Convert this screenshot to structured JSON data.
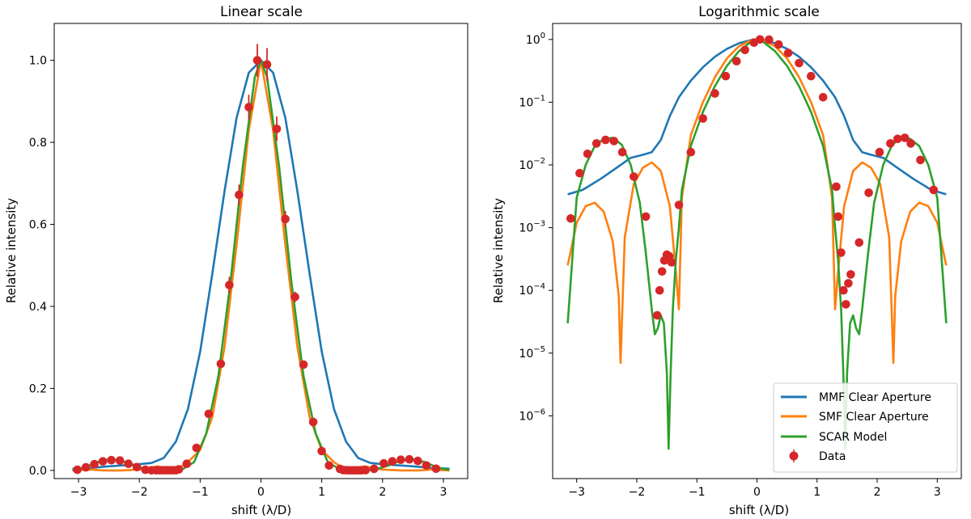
{
  "colors": {
    "mmf": "#1f77b4",
    "smf": "#ff7f0e",
    "scar": "#2ca02c",
    "data": "#d62728"
  },
  "chart_data": [
    {
      "type": "line",
      "title": "Linear scale",
      "xlabel": "shift (λ/D)",
      "ylabel": "Relative intensity",
      "xlim": [
        -3.4,
        3.4
      ],
      "ylim": [
        -0.02,
        1.09
      ],
      "yscale": "linear",
      "xticks": [
        -3,
        -2,
        -1,
        0,
        1,
        2,
        3
      ],
      "xtick_labels": [
        "−3",
        "−2",
        "−1",
        "0",
        "1",
        "2",
        "3"
      ],
      "yticks": [
        0.0,
        0.2,
        0.4,
        0.6,
        0.8,
        1.0
      ],
      "ytick_labels": [
        "0.0",
        "0.2",
        "0.4",
        "0.6",
        "0.8",
        "1.0"
      ],
      "series": [
        {
          "name": "MMF Clear Aperture",
          "color_key": "mmf",
          "x": [
            -3.1,
            -2.8,
            -2.5,
            -2.2,
            -2.0,
            -1.8,
            -1.6,
            -1.4,
            -1.2,
            -1.0,
            -0.8,
            -0.6,
            -0.4,
            -0.2,
            0.0,
            0.2,
            0.4,
            0.6,
            0.8,
            1.0,
            1.2,
            1.4,
            1.6,
            1.8,
            2.0,
            2.2,
            2.5,
            2.8,
            3.1
          ],
          "y": [
            0.004,
            0.006,
            0.01,
            0.013,
            0.015,
            0.018,
            0.03,
            0.07,
            0.15,
            0.29,
            0.48,
            0.68,
            0.86,
            0.97,
            1.0,
            0.97,
            0.86,
            0.68,
            0.48,
            0.29,
            0.15,
            0.07,
            0.03,
            0.018,
            0.015,
            0.013,
            0.01,
            0.006,
            0.004
          ]
        },
        {
          "name": "SMF Clear Aperture",
          "color_key": "smf",
          "x": [
            -3.1,
            -2.8,
            -2.6,
            -2.3,
            -2.0,
            -1.7,
            -1.4,
            -1.2,
            -1.0,
            -0.8,
            -0.6,
            -0.4,
            -0.2,
            0.0,
            0.2,
            0.4,
            0.6,
            0.8,
            1.0,
            1.2,
            1.4,
            1.7,
            2.0,
            2.3,
            2.6,
            2.8,
            3.1
          ],
          "y": [
            0.0,
            0.002,
            0.0,
            0.0,
            0.002,
            0.01,
            0.001,
            0.02,
            0.05,
            0.13,
            0.3,
            0.55,
            0.83,
            1.0,
            0.83,
            0.55,
            0.3,
            0.13,
            0.05,
            0.02,
            0.001,
            0.01,
            0.002,
            0.0,
            0.0,
            0.002,
            0.0
          ]
        },
        {
          "name": "SCAR Model",
          "color_key": "scar",
          "x": [
            -3.1,
            -2.9,
            -2.7,
            -2.5,
            -2.3,
            -2.1,
            -1.9,
            -1.7,
            -1.5,
            -1.3,
            -1.1,
            -0.9,
            -0.7,
            -0.5,
            -0.3,
            -0.1,
            0.0,
            0.1,
            0.3,
            0.5,
            0.7,
            0.9,
            1.1,
            1.3,
            1.5,
            1.7,
            1.9,
            2.1,
            2.3,
            2.5,
            2.7,
            2.9,
            3.1
          ],
          "y": [
            0.001,
            0.007,
            0.02,
            0.027,
            0.024,
            0.012,
            0.003,
            0.0003,
            0.0002,
            0.002,
            0.02,
            0.09,
            0.23,
            0.46,
            0.74,
            0.96,
            1.0,
            0.96,
            0.74,
            0.46,
            0.23,
            0.09,
            0.02,
            0.002,
            0.0002,
            0.0003,
            0.003,
            0.012,
            0.024,
            0.027,
            0.02,
            0.007,
            0.001
          ]
        }
      ],
      "data_points": {
        "name": "Data",
        "color_key": "data",
        "x": [
          -3.02,
          -2.88,
          -2.74,
          -2.6,
          -2.46,
          -2.32,
          -2.18,
          -2.04,
          -1.9,
          -1.8,
          -1.72,
          -1.66,
          -1.6,
          -1.55,
          -1.5,
          -1.45,
          -1.4,
          -1.35,
          -1.22,
          -1.06,
          -0.86,
          -0.66,
          -0.52,
          -0.36,
          -0.2,
          -0.06,
          0.1,
          0.26,
          0.4,
          0.56,
          0.7,
          0.86,
          1.0,
          1.12,
          1.3,
          1.35,
          1.4,
          1.45,
          1.5,
          1.55,
          1.6,
          1.65,
          1.72,
          1.86,
          2.02,
          2.16,
          2.3,
          2.44,
          2.58,
          2.72,
          2.88
        ],
        "y": [
          0.0014,
          0.0074,
          0.015,
          0.022,
          0.025,
          0.024,
          0.016,
          0.008,
          0.0015,
          4e-05,
          0.0001,
          0.0002,
          0.0003,
          0.00036,
          0.00035,
          0.0003,
          0.00028,
          0.0025,
          0.016,
          0.055,
          0.138,
          0.26,
          0.452,
          0.672,
          0.886,
          1.0,
          0.99,
          0.833,
          0.613,
          0.423,
          0.258,
          0.118,
          0.047,
          0.012,
          0.0035,
          0.0009,
          0.0003,
          0.0001,
          6e-05,
          0.00013,
          0.00018,
          0.00016,
          0.0006,
          0.0039,
          0.017,
          0.022,
          0.026,
          0.027,
          0.023,
          0.012,
          0.004
        ],
        "errors": [
          0,
          0,
          0,
          0,
          0,
          0,
          0,
          0,
          0,
          0,
          0,
          0,
          0,
          0,
          0,
          0,
          0,
          0,
          0,
          0,
          0.004,
          0.008,
          0.02,
          0.025,
          0.03,
          0.04,
          0.04,
          0.03,
          0.02,
          0.013,
          0.005,
          0,
          0,
          0,
          0,
          0,
          0,
          0,
          0,
          0,
          0,
          0,
          0,
          0,
          0,
          0,
          0,
          0,
          0,
          0,
          0
        ]
      }
    },
    {
      "type": "line",
      "title": "Logarithmic scale",
      "xlabel": "shift (λ/D)",
      "ylabel": "Relative intensity",
      "xlim": [
        -3.4,
        3.4
      ],
      "ylim": [
        1e-07,
        1.8
      ],
      "yscale": "log",
      "xticks": [
        -3,
        -2,
        -1,
        0,
        1,
        2,
        3
      ],
      "xtick_labels": [
        "−3",
        "−2",
        "−1",
        "0",
        "1",
        "2",
        "3"
      ],
      "yticks": [
        1e-06,
        1e-05,
        0.0001,
        0.001,
        0.01,
        0.1,
        1
      ],
      "ytick_base": "10",
      "ytick_exponents": [
        "−6",
        "−5",
        "−4",
        "−3",
        "−2",
        "−1",
        "0"
      ],
      "series": [
        {
          "name": "MMF Clear Aperture",
          "color_key": "mmf",
          "x": [
            -3.15,
            -2.9,
            -2.6,
            -2.3,
            -2.1,
            -1.9,
            -1.75,
            -1.6,
            -1.45,
            -1.3,
            -1.1,
            -0.9,
            -0.7,
            -0.5,
            -0.3,
            -0.1,
            0.0,
            0.1,
            0.3,
            0.5,
            0.7,
            0.9,
            1.1,
            1.3,
            1.45,
            1.6,
            1.75,
            1.9,
            2.1,
            2.3,
            2.6,
            2.9,
            3.15
          ],
          "y": [
            0.0034,
            0.004,
            0.006,
            0.0095,
            0.013,
            0.0145,
            0.016,
            0.025,
            0.06,
            0.12,
            0.22,
            0.36,
            0.53,
            0.71,
            0.87,
            0.98,
            1.0,
            0.98,
            0.87,
            0.71,
            0.53,
            0.36,
            0.22,
            0.12,
            0.06,
            0.025,
            0.016,
            0.0145,
            0.013,
            0.0095,
            0.006,
            0.004,
            0.0034
          ]
        },
        {
          "name": "SMF Clear Aperture",
          "color_key": "smf",
          "x": [
            -3.15,
            -3.0,
            -2.85,
            -2.7,
            -2.55,
            -2.4,
            -2.3,
            -2.27,
            -2.2,
            -2.05,
            -1.9,
            -1.75,
            -1.6,
            -1.45,
            -1.35,
            -1.3,
            -1.25,
            -1.1,
            -0.9,
            -0.7,
            -0.5,
            -0.3,
            -0.1,
            0.0,
            0.1,
            0.3,
            0.5,
            0.7,
            0.9,
            1.1,
            1.25,
            1.3,
            1.35,
            1.45,
            1.6,
            1.75,
            1.9,
            2.05,
            2.2,
            2.27,
            2.3,
            2.4,
            2.55,
            2.7,
            2.85,
            3.0,
            3.15
          ],
          "y": [
            0.00025,
            0.0012,
            0.0022,
            0.0025,
            0.0018,
            0.0006,
            8e-05,
            7e-06,
            0.0007,
            0.005,
            0.009,
            0.011,
            0.008,
            0.0022,
            0.0002,
            5e-05,
            0.003,
            0.03,
            0.1,
            0.25,
            0.5,
            0.78,
            0.97,
            1.0,
            0.97,
            0.78,
            0.5,
            0.25,
            0.1,
            0.03,
            0.003,
            5e-05,
            0.0002,
            0.0022,
            0.008,
            0.011,
            0.009,
            0.005,
            0.0007,
            7e-06,
            8e-05,
            0.0006,
            0.0018,
            0.0025,
            0.0022,
            0.0012,
            0.00025
          ]
        },
        {
          "name": "SCAR Model",
          "color_key": "scar",
          "x": [
            -3.15,
            -3.0,
            -2.85,
            -2.7,
            -2.55,
            -2.4,
            -2.25,
            -2.1,
            -1.95,
            -1.85,
            -1.75,
            -1.7,
            -1.65,
            -1.6,
            -1.55,
            -1.5,
            -1.47,
            -1.44,
            -1.4,
            -1.35,
            -1.3,
            -1.25,
            -1.1,
            -0.9,
            -0.7,
            -0.5,
            -0.3,
            -0.1,
            0.0,
            0.1,
            0.3,
            0.5,
            0.7,
            0.9,
            1.1,
            1.25,
            1.3,
            1.35,
            1.4,
            1.44,
            1.47,
            1.5,
            1.55,
            1.6,
            1.65,
            1.7,
            1.75,
            1.85,
            1.95,
            2.1,
            2.25,
            2.4,
            2.55,
            2.7,
            2.85,
            3.0,
            3.15
          ],
          "y": [
            3e-05,
            0.003,
            0.01,
            0.02,
            0.026,
            0.027,
            0.021,
            0.01,
            0.0025,
            0.0004,
            5e-05,
            2e-05,
            2.5e-05,
            4e-05,
            3e-05,
            5e-06,
            3e-07,
            4e-06,
            5e-05,
            0.0003,
            0.001,
            0.004,
            0.02,
            0.07,
            0.18,
            0.38,
            0.65,
            0.92,
            1.0,
            0.92,
            0.65,
            0.38,
            0.18,
            0.07,
            0.02,
            0.004,
            0.001,
            0.0003,
            5e-05,
            4e-06,
            3e-07,
            5e-06,
            3e-05,
            4e-05,
            2.5e-05,
            2e-05,
            5e-05,
            0.0004,
            0.0025,
            0.01,
            0.021,
            0.027,
            0.026,
            0.02,
            0.01,
            0.003,
            3e-05
          ]
        }
      ],
      "data_points": {
        "name": "Data",
        "color_key": "data",
        "x": [
          -3.1,
          -2.95,
          -2.82,
          -2.67,
          -2.52,
          -2.38,
          -2.24,
          -2.05,
          -1.85,
          -1.66,
          -1.62,
          -1.58,
          -1.54,
          -1.5,
          -1.46,
          -1.42,
          -1.3,
          -1.1,
          -0.9,
          -0.7,
          -0.52,
          -0.34,
          -0.2,
          -0.05,
          0.05,
          0.2,
          0.36,
          0.52,
          0.7,
          0.9,
          1.1,
          1.32,
          1.35,
          1.4,
          1.44,
          1.48,
          1.52,
          1.56,
          1.7,
          1.86,
          2.04,
          2.22,
          2.34,
          2.46,
          2.56,
          2.72,
          2.94
        ],
        "y": [
          0.0014,
          0.0074,
          0.015,
          0.022,
          0.025,
          0.024,
          0.016,
          0.0065,
          0.0015,
          4e-05,
          0.0001,
          0.0002,
          0.0003,
          0.00037,
          0.00035,
          0.00028,
          0.0023,
          0.016,
          0.055,
          0.138,
          0.26,
          0.45,
          0.68,
          0.89,
          1.0,
          0.99,
          0.83,
          0.61,
          0.42,
          0.26,
          0.12,
          0.0045,
          0.0015,
          0.0004,
          0.0001,
          6e-05,
          0.00013,
          0.00018,
          0.00058,
          0.0036,
          0.016,
          0.022,
          0.026,
          0.027,
          0.022,
          0.012,
          0.004
        ],
        "errors": []
      },
      "legend": {
        "location": "lower right",
        "entries": [
          "MMF Clear Aperture",
          "SMF Clear Aperture",
          "SCAR Model",
          "Data"
        ]
      }
    }
  ]
}
